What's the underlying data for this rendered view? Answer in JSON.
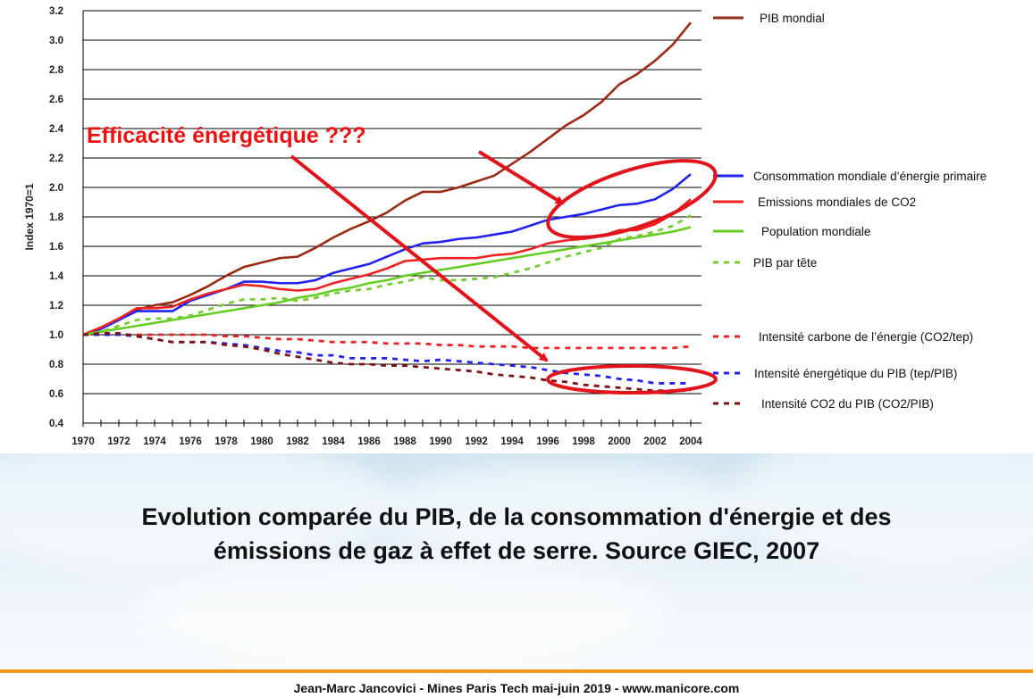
{
  "caption": {
    "line1": "Evolution comparée du PIB, de la consommation d'énergie et des",
    "line2": "émissions de gaz à effet de serre. Source GIEC, 2007"
  },
  "credit": "Jean-Marc Jancovici - Mines Paris Tech mai-juin 2019 - www.manicore.com",
  "chart_data": {
    "type": "line",
    "title": "",
    "xlabel": "",
    "ylabel": "Index 1970=1",
    "xlim": [
      1970,
      2004
    ],
    "ylim": [
      0.4,
      3.2
    ],
    "y_ticks": [
      "0.4",
      "0.6",
      "0.8",
      "1.0",
      "1.2",
      "1.4",
      "1.6",
      "1.8",
      "2.0",
      "2.2",
      "2.4",
      "2.6",
      "2.8",
      "3.0",
      "3.2"
    ],
    "x_ticks": [
      "1970",
      "1972",
      "1974",
      "1976",
      "1978",
      "1980",
      "1982",
      "1984",
      "1986",
      "1988",
      "1990",
      "1992",
      "1994",
      "1996",
      "1998",
      "2000",
      "2002",
      "2004"
    ],
    "grid": "horizontal",
    "legend_position": "right",
    "x": [
      1970,
      1971,
      1972,
      1973,
      1974,
      1975,
      1976,
      1977,
      1978,
      1979,
      1980,
      1981,
      1982,
      1983,
      1984,
      1985,
      1986,
      1987,
      1988,
      1989,
      1990,
      1991,
      1992,
      1993,
      1994,
      1995,
      1996,
      1997,
      1998,
      1999,
      2000,
      2001,
      2002,
      2003,
      2004
    ],
    "series": [
      {
        "name": "PIB mondial",
        "color": "#9b2a14",
        "style": "solid",
        "values": [
          1.0,
          1.04,
          1.1,
          1.17,
          1.2,
          1.22,
          1.27,
          1.33,
          1.4,
          1.46,
          1.49,
          1.52,
          1.53,
          1.59,
          1.66,
          1.72,
          1.77,
          1.83,
          1.91,
          1.97,
          1.97,
          2.0,
          2.04,
          2.08,
          2.16,
          2.24,
          2.33,
          2.42,
          2.49,
          2.58,
          2.7,
          2.77,
          2.86,
          2.97,
          3.12
        ]
      },
      {
        "name": "Consommation mondiale d’énergie primaire",
        "color": "#2222ee",
        "style": "solid",
        "values": [
          1.0,
          1.04,
          1.1,
          1.16,
          1.16,
          1.16,
          1.23,
          1.27,
          1.31,
          1.36,
          1.36,
          1.35,
          1.35,
          1.37,
          1.42,
          1.45,
          1.48,
          1.53,
          1.58,
          1.62,
          1.63,
          1.65,
          1.66,
          1.68,
          1.7,
          1.74,
          1.78,
          1.8,
          1.82,
          1.85,
          1.88,
          1.89,
          1.92,
          1.99,
          2.09
        ]
      },
      {
        "name": "Emissions mondiales de CO2",
        "color": "#ee2222",
        "style": "solid",
        "values": [
          1.0,
          1.05,
          1.11,
          1.18,
          1.18,
          1.19,
          1.24,
          1.28,
          1.31,
          1.34,
          1.33,
          1.31,
          1.3,
          1.31,
          1.35,
          1.38,
          1.41,
          1.45,
          1.5,
          1.51,
          1.52,
          1.52,
          1.52,
          1.54,
          1.55,
          1.58,
          1.62,
          1.64,
          1.65,
          1.67,
          1.71,
          1.71,
          1.75,
          1.82,
          1.92
        ]
      },
      {
        "name": "Population mondiale",
        "color": "#66cc22",
        "style": "solid",
        "values": [
          1.0,
          1.02,
          1.04,
          1.06,
          1.08,
          1.1,
          1.12,
          1.14,
          1.16,
          1.18,
          1.2,
          1.22,
          1.25,
          1.27,
          1.3,
          1.32,
          1.35,
          1.37,
          1.4,
          1.42,
          1.44,
          1.46,
          1.48,
          1.5,
          1.52,
          1.54,
          1.56,
          1.58,
          1.6,
          1.62,
          1.64,
          1.66,
          1.68,
          1.7,
          1.73
        ]
      },
      {
        "name": "PIB par tête",
        "color": "#77cc33",
        "style": "dotted",
        "values": [
          1.0,
          1.02,
          1.06,
          1.1,
          1.11,
          1.11,
          1.13,
          1.17,
          1.21,
          1.24,
          1.24,
          1.25,
          1.23,
          1.25,
          1.28,
          1.3,
          1.31,
          1.34,
          1.36,
          1.39,
          1.37,
          1.37,
          1.38,
          1.39,
          1.42,
          1.45,
          1.49,
          1.53,
          1.56,
          1.59,
          1.65,
          1.67,
          1.7,
          1.74,
          1.81
        ]
      },
      {
        "name": "Intensité carbone de l’énergie (CO2/tep)",
        "color": "#ee2222",
        "style": "dotted",
        "values": [
          1.0,
          1.0,
          1.0,
          1.0,
          1.0,
          1.0,
          1.0,
          1.0,
          0.99,
          0.99,
          0.98,
          0.97,
          0.97,
          0.96,
          0.95,
          0.95,
          0.95,
          0.94,
          0.94,
          0.94,
          0.93,
          0.93,
          0.92,
          0.92,
          0.92,
          0.91,
          0.91,
          0.91,
          0.91,
          0.91,
          0.91,
          0.91,
          0.91,
          0.91,
          0.92
        ]
      },
      {
        "name": "Intensité énergétique du PIB (tep/PIB)",
        "color": "#2222ee",
        "style": "dotted",
        "values": [
          1.0,
          1.0,
          1.0,
          0.99,
          0.97,
          0.95,
          0.95,
          0.95,
          0.94,
          0.93,
          0.91,
          0.89,
          0.88,
          0.86,
          0.86,
          0.84,
          0.84,
          0.84,
          0.83,
          0.82,
          0.83,
          0.82,
          0.81,
          0.8,
          0.79,
          0.78,
          0.76,
          0.74,
          0.73,
          0.72,
          0.7,
          0.69,
          0.67,
          0.67,
          0.67
        ]
      },
      {
        "name": "Intensité CO2 du PIB (CO2/PIB)",
        "color": "#7a1414",
        "style": "dotted",
        "values": [
          1.0,
          1.01,
          1.01,
          0.99,
          0.97,
          0.95,
          0.95,
          0.95,
          0.93,
          0.92,
          0.9,
          0.87,
          0.85,
          0.83,
          0.81,
          0.8,
          0.8,
          0.79,
          0.79,
          0.78,
          0.77,
          0.76,
          0.75,
          0.73,
          0.72,
          0.71,
          0.69,
          0.68,
          0.66,
          0.65,
          0.64,
          0.63,
          0.62,
          0.62,
          0.62
        ]
      }
    ],
    "annotations": [
      {
        "text": "Efficacité énergétique  ???",
        "color": "#ee1111"
      }
    ]
  }
}
